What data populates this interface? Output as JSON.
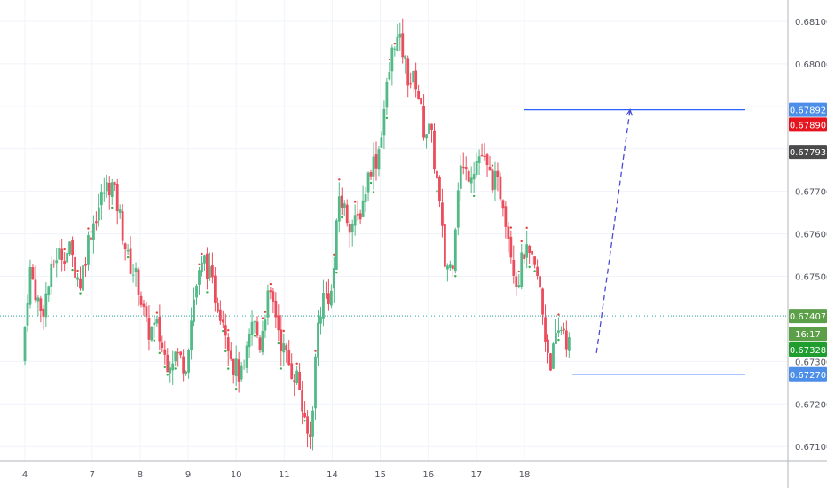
{
  "chart_data": {
    "type": "candlestick",
    "title": "",
    "xlabel": "",
    "ylabel": "",
    "ylim": [
      0.67065,
      0.6815
    ],
    "x_ticks": [
      "4",
      "7",
      "8",
      "9",
      "10",
      "11",
      "14",
      "15",
      "16",
      "17",
      "18"
    ],
    "y_ticks": [
      "0.68100",
      "0.68000",
      "0.67900",
      "0.67800",
      "0.67700",
      "0.67600",
      "0.67500",
      "0.67400",
      "0.67300",
      "0.67200",
      "0.67100"
    ],
    "grid": true,
    "colors": {
      "up": "#53b987",
      "down": "#eb4d5c",
      "level_line": "#2962ff",
      "dashed_arrow": "#4b4bd6",
      "current_price_line": "#26a69a"
    },
    "close_path": [
      {
        "day": 3.6,
        "close": 0.673
      },
      {
        "day": 3.75,
        "close": 0.6752
      },
      {
        "day": 4.0,
        "close": 0.6741
      },
      {
        "day": 4.3,
        "close": 0.6755
      },
      {
        "day": 4.6,
        "close": 0.6756
      },
      {
        "day": 4.8,
        "close": 0.6748
      },
      {
        "day": 5.0,
        "close": 0.676
      },
      {
        "day": 5.3,
        "close": 0.677
      },
      {
        "day": 5.45,
        "close": 0.6772
      },
      {
        "day": 5.6,
        "close": 0.6766
      },
      {
        "day": 5.8,
        "close": 0.6754
      },
      {
        "day": 6.0,
        "close": 0.6749
      },
      {
        "day": 6.2,
        "close": 0.6737
      },
      {
        "day": 6.4,
        "close": 0.6738
      },
      {
        "day": 6.6,
        "close": 0.673
      },
      {
        "day": 6.8,
        "close": 0.6732
      },
      {
        "day": 7.0,
        "close": 0.6729
      },
      {
        "day": 7.2,
        "close": 0.6747
      },
      {
        "day": 7.4,
        "close": 0.6754
      },
      {
        "day": 7.6,
        "close": 0.6746
      },
      {
        "day": 7.8,
        "close": 0.674
      },
      {
        "day": 8.0,
        "close": 0.6729
      },
      {
        "day": 8.2,
        "close": 0.6726
      },
      {
        "day": 8.4,
        "close": 0.674
      },
      {
        "day": 8.55,
        "close": 0.6734
      },
      {
        "day": 8.7,
        "close": 0.6745
      },
      {
        "day": 8.85,
        "close": 0.6743
      },
      {
        "day": 9.0,
        "close": 0.6734
      },
      {
        "day": 9.2,
        "close": 0.6728
      },
      {
        "day": 9.35,
        "close": 0.6726
      },
      {
        "day": 9.5,
        "close": 0.6713
      },
      {
        "day": 9.6,
        "close": 0.6712
      },
      {
        "day": 9.75,
        "close": 0.6738
      },
      {
        "day": 9.85,
        "close": 0.6745
      },
      {
        "day": 10.05,
        "close": 0.6746
      },
      {
        "day": 10.2,
        "close": 0.6769
      },
      {
        "day": 10.4,
        "close": 0.6763
      },
      {
        "day": 10.55,
        "close": 0.6762
      },
      {
        "day": 10.7,
        "close": 0.6768
      },
      {
        "day": 10.85,
        "close": 0.6776
      },
      {
        "day": 11.0,
        "close": 0.6778
      },
      {
        "day": 11.2,
        "close": 0.6795
      },
      {
        "day": 11.35,
        "close": 0.6806
      },
      {
        "day": 11.5,
        "close": 0.6804
      },
      {
        "day": 11.65,
        "close": 0.6796
      },
      {
        "day": 11.8,
        "close": 0.6796
      },
      {
        "day": 11.95,
        "close": 0.6785
      },
      {
        "day": 12.1,
        "close": 0.6784
      },
      {
        "day": 12.25,
        "close": 0.6771
      },
      {
        "day": 12.4,
        "close": 0.6753
      },
      {
        "day": 12.55,
        "close": 0.6752
      },
      {
        "day": 12.7,
        "close": 0.6776
      },
      {
        "day": 12.85,
        "close": 0.6774
      },
      {
        "day": 13.0,
        "close": 0.6776
      },
      {
        "day": 13.15,
        "close": 0.6779
      },
      {
        "day": 13.3,
        "close": 0.6774
      },
      {
        "day": 13.45,
        "close": 0.6772
      },
      {
        "day": 13.6,
        "close": 0.6769
      },
      {
        "day": 13.75,
        "close": 0.6758
      },
      {
        "day": 13.9,
        "close": 0.6748
      },
      {
        "day": 14.05,
        "close": 0.6756
      },
      {
        "day": 14.2,
        "close": 0.6753
      },
      {
        "day": 14.35,
        "close": 0.6749
      },
      {
        "day": 14.5,
        "close": 0.6735
      },
      {
        "day": 14.6,
        "close": 0.673
      },
      {
        "day": 14.75,
        "close": 0.6736
      },
      {
        "day": 14.85,
        "close": 0.6739
      },
      {
        "day": 14.95,
        "close": 0.6734
      }
    ],
    "levels": [
      {
        "label": "0.67892",
        "value": 0.67892,
        "x_start": 14.0,
        "x_end": 18.6,
        "color": "#2962ff"
      },
      {
        "label": "0.67270",
        "value": 0.6727,
        "x_start": 15.0,
        "x_end": 18.6,
        "color": "#2962ff"
      }
    ],
    "current_price": {
      "value": 0.67407,
      "label": "0.67407",
      "countdown": "16:17"
    },
    "price_badges": [
      {
        "label": "0.67892",
        "value": 0.67892,
        "color": "#4d8ee8"
      },
      {
        "label": "0.67890",
        "value": 0.67857,
        "color": "#e6141e"
      },
      {
        "label": "0.67793",
        "value": 0.67793,
        "color": "#4a4a4a"
      },
      {
        "label": "0.67407",
        "value": 0.67407,
        "color": "#5b9f49"
      },
      {
        "label": "16:17",
        "value": 0.67365,
        "color": "#5b9f49"
      },
      {
        "label": "0.67328",
        "value": 0.67328,
        "color": "#1f9d2e"
      },
      {
        "label": "0.67270",
        "value": 0.6727,
        "color": "#4d8ee8"
      }
    ],
    "projection": {
      "from": {
        "day": 15.5,
        "price": 0.6732
      },
      "to": {
        "day": 16.2,
        "price": 0.67892
      }
    }
  }
}
